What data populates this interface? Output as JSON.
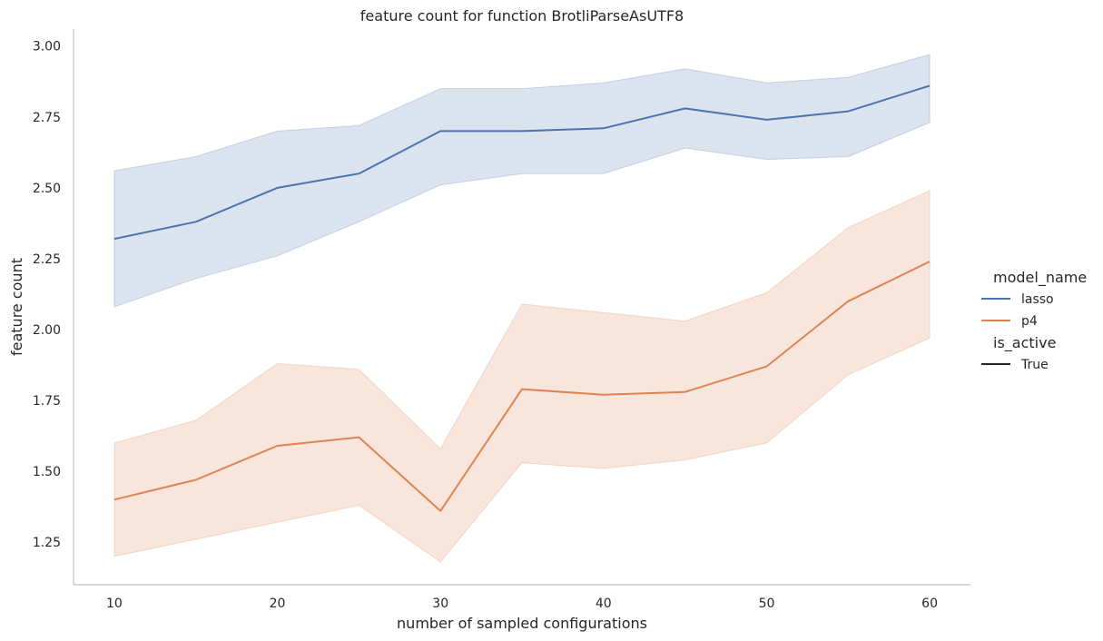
{
  "chart_data": {
    "type": "line",
    "title": "feature count for function BrotliParseAsUTF8",
    "xlabel": "number of sampled configurations",
    "ylabel": "feature count",
    "x": [
      10,
      15,
      20,
      25,
      30,
      35,
      40,
      45,
      50,
      55,
      60
    ],
    "xticks": [
      10,
      20,
      30,
      40,
      50,
      60
    ],
    "xlim": [
      7.5,
      62.5
    ],
    "yticks": [
      1.25,
      1.5,
      1.75,
      2.0,
      2.25,
      2.5,
      2.75,
      3.0
    ],
    "ytick_labels": [
      "1.25",
      "1.50",
      "1.75",
      "2.00",
      "2.25",
      "2.50",
      "2.75",
      "3.00"
    ],
    "ylim": [
      1.1,
      3.06
    ],
    "grid": false,
    "legend_position": "right",
    "legend": {
      "hue_title": "model_name",
      "style_title": "is_active",
      "style_entries": [
        {
          "label": "True",
          "color": "#262626"
        }
      ]
    },
    "series": [
      {
        "name": "lasso",
        "color": "#4c72b0",
        "values": [
          2.32,
          2.38,
          2.5,
          2.55,
          2.7,
          2.7,
          2.71,
          2.78,
          2.74,
          2.77,
          2.86
        ],
        "ci_lower": [
          2.08,
          2.18,
          2.26,
          2.38,
          2.51,
          2.55,
          2.55,
          2.64,
          2.6,
          2.61,
          2.73
        ],
        "ci_upper": [
          2.56,
          2.61,
          2.7,
          2.72,
          2.85,
          2.85,
          2.87,
          2.92,
          2.87,
          2.89,
          2.97
        ]
      },
      {
        "name": "p4",
        "color": "#dd8452",
        "values": [
          1.4,
          1.47,
          1.59,
          1.62,
          1.36,
          1.79,
          1.77,
          1.78,
          1.87,
          2.1,
          2.24
        ],
        "ci_lower": [
          1.2,
          1.26,
          1.32,
          1.38,
          1.18,
          1.53,
          1.51,
          1.54,
          1.6,
          1.84,
          1.97
        ],
        "ci_upper": [
          1.6,
          1.68,
          1.88,
          1.86,
          1.58,
          2.09,
          2.06,
          2.03,
          2.13,
          2.36,
          2.49
        ]
      }
    ]
  }
}
